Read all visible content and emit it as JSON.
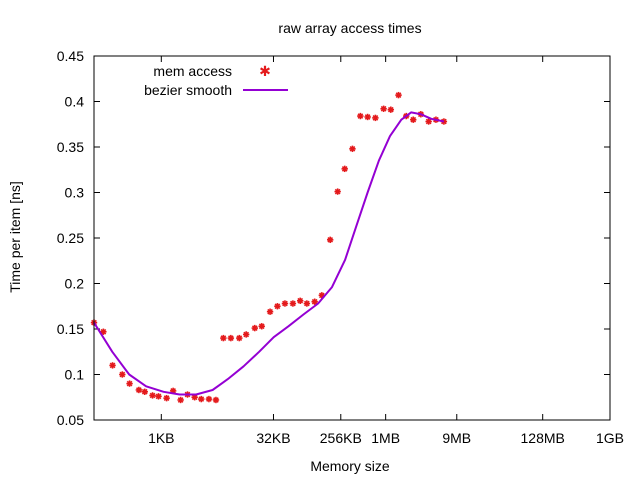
{
  "chart_data": {
    "type": "scatter",
    "title": "raw array access times",
    "xlabel": "Memory size",
    "ylabel": "Time per item [ns]",
    "x_scale": "log2",
    "x_unit": "bytes",
    "xlim": [
      128,
      1073741824
    ],
    "ylim": [
      0.05,
      0.45
    ],
    "x_ticks": [
      {
        "label": "1KB",
        "value": 1024
      },
      {
        "label": "32KB",
        "value": 32768
      },
      {
        "label": "256KB",
        "value": 262144
      },
      {
        "label": "1MB",
        "value": 1048576
      },
      {
        "label": "9MB",
        "value": 9437184
      },
      {
        "label": "128MB",
        "value": 134217728
      },
      {
        "label": "1GB",
        "value": 1073741824
      }
    ],
    "y_ticks": [
      {
        "label": "0.05",
        "value": 0.05
      },
      {
        "label": "0.1",
        "value": 0.1
      },
      {
        "label": "0.15",
        "value": 0.15
      },
      {
        "label": "0.2",
        "value": 0.2
      },
      {
        "label": "0.25",
        "value": 0.25
      },
      {
        "label": "0.3",
        "value": 0.3
      },
      {
        "label": "0.35",
        "value": 0.35
      },
      {
        "label": "0.4",
        "value": 0.4
      },
      {
        "label": "0.45",
        "value": 0.45
      }
    ],
    "grid": false,
    "legend": "top-left",
    "series": [
      {
        "name": "mem access",
        "kind": "points",
        "color": "#e41a1c",
        "points": [
          [
            128,
            0.157
          ],
          [
            171,
            0.147
          ],
          [
            227,
            0.11
          ],
          [
            307,
            0.1
          ],
          [
            384,
            0.09
          ],
          [
            512,
            0.083
          ],
          [
            614,
            0.081
          ],
          [
            781,
            0.077
          ],
          [
            939,
            0.076
          ],
          [
            1206,
            0.074
          ],
          [
            1476,
            0.082
          ],
          [
            1860,
            0.072
          ],
          [
            2300,
            0.078
          ],
          [
            2870,
            0.075
          ],
          [
            3520,
            0.073
          ],
          [
            4460,
            0.073
          ],
          [
            5540,
            0.072
          ],
          [
            6970,
            0.14
          ],
          [
            8780,
            0.14
          ],
          [
            11400,
            0.14
          ],
          [
            14100,
            0.144
          ],
          [
            18400,
            0.151
          ],
          [
            22800,
            0.153
          ],
          [
            29500,
            0.169
          ],
          [
            37000,
            0.175
          ],
          [
            46700,
            0.178
          ],
          [
            59700,
            0.178
          ],
          [
            74800,
            0.181
          ],
          [
            91900,
            0.178
          ],
          [
            117000,
            0.18
          ],
          [
            146000,
            0.187
          ],
          [
            189000,
            0.248
          ],
          [
            238000,
            0.301
          ],
          [
            296000,
            0.326
          ],
          [
            376000,
            0.348
          ],
          [
            480000,
            0.384
          ],
          [
            601000,
            0.383
          ],
          [
            764000,
            0.382
          ],
          [
            985000,
            0.392
          ],
          [
            1230000,
            0.391
          ],
          [
            1560000,
            0.407
          ],
          [
            1980000,
            0.384
          ],
          [
            2460000,
            0.38
          ],
          [
            3110000,
            0.386
          ],
          [
            3960000,
            0.378
          ],
          [
            4960000,
            0.38
          ],
          [
            6340000,
            0.378
          ]
        ]
      },
      {
        "name": "bezier smooth",
        "kind": "line",
        "color": "#9400d3",
        "points": [
          [
            128,
            0.157
          ],
          [
            225,
            0.125
          ],
          [
            380,
            0.1
          ],
          [
            640,
            0.087
          ],
          [
            1100,
            0.081
          ],
          [
            1800,
            0.078
          ],
          [
            3000,
            0.078
          ],
          [
            5000,
            0.083
          ],
          [
            8000,
            0.095
          ],
          [
            13000,
            0.109
          ],
          [
            21000,
            0.125
          ],
          [
            33000,
            0.141
          ],
          [
            52000,
            0.153
          ],
          [
            83000,
            0.166
          ],
          [
            130000,
            0.178
          ],
          [
            200000,
            0.196
          ],
          [
            300000,
            0.226
          ],
          [
            420000,
            0.262
          ],
          [
            600000,
            0.3
          ],
          [
            850000,
            0.335
          ],
          [
            1200000,
            0.362
          ],
          [
            1700000,
            0.38
          ],
          [
            2300000,
            0.388
          ],
          [
            3100000,
            0.386
          ],
          [
            4300000,
            0.381
          ],
          [
            6340000,
            0.378
          ]
        ]
      }
    ]
  }
}
